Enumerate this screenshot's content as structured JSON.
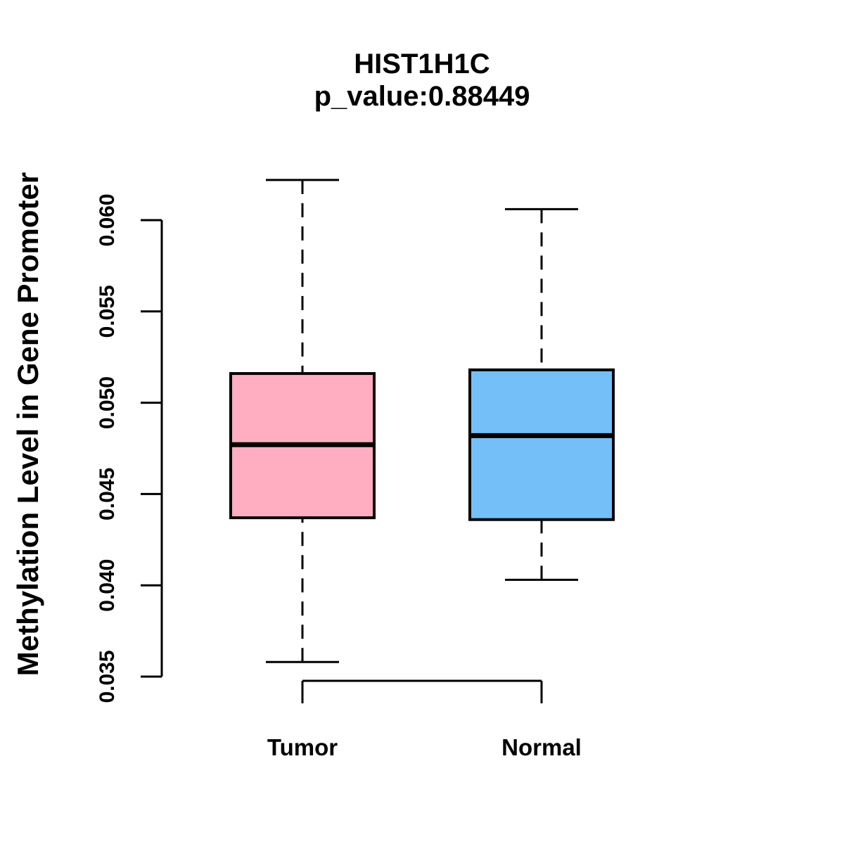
{
  "chart_data": {
    "type": "boxplot",
    "title": "HIST1H1C",
    "subtitle": "p_value:0.88449",
    "p_value": 0.88449,
    "ylabel": "Methylation Level in Gene Promoter",
    "categories": [
      "Tumor",
      "Normal"
    ],
    "y_ticks": [
      0.035,
      0.04,
      0.045,
      0.05,
      0.055,
      0.06
    ],
    "y_tick_labels": [
      "0.035",
      "0.040",
      "0.045",
      "0.050",
      "0.055",
      "0.060"
    ],
    "ylim": [
      0.0335,
      0.0625
    ],
    "grid": false,
    "whisker_linestyle": "dashed",
    "legend_position": "none",
    "series": [
      {
        "name": "Tumor",
        "color": "#FFAEC1",
        "whisker_low": 0.0358,
        "q1": 0.0437,
        "median": 0.0477,
        "q3": 0.0516,
        "whisker_high": 0.0622
      },
      {
        "name": "Normal",
        "color": "#74BFF7",
        "whisker_low": 0.0403,
        "q1": 0.0436,
        "median": 0.0482,
        "q3": 0.0518,
        "whisker_high": 0.0606
      }
    ],
    "box_border_color": "#000000",
    "text_color": "#000000"
  }
}
